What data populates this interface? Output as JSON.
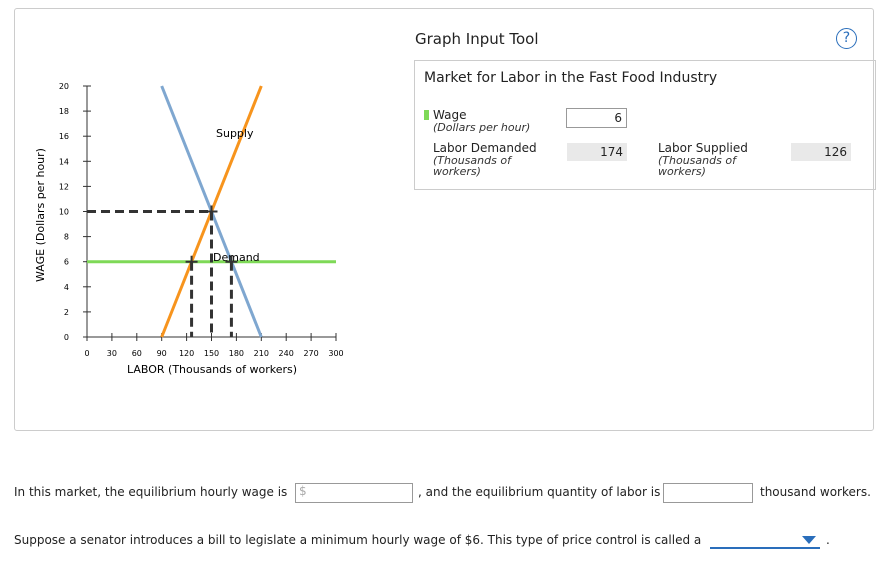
{
  "chart_data": {
    "type": "line",
    "x_label": "LABOR (Thousands of workers)",
    "y_label": "WAGE (Dollars per hour)",
    "xlim": [
      0,
      300
    ],
    "ylim": [
      0,
      20
    ],
    "xticks": [
      0,
      30,
      60,
      90,
      120,
      150,
      180,
      210,
      240,
      270,
      300
    ],
    "yticks": [
      0,
      2,
      4,
      6,
      8,
      10,
      12,
      14,
      16,
      18,
      20
    ],
    "series": [
      {
        "name": "Supply",
        "color": "#f7941d",
        "x": [
          90,
          210
        ],
        "values": [
          0,
          20
        ]
      },
      {
        "name": "Demand",
        "color": "#7fa7d0",
        "x": [
          90,
          210
        ],
        "values": [
          20,
          0
        ]
      }
    ],
    "wage_color": "#7ed957",
    "equilibrium": {
      "x": 150,
      "y": 10
    }
  },
  "tool": {
    "title": "Graph Input Tool",
    "help": "?",
    "market": "Market for Labor in the Fast Food Industry",
    "wage": {
      "label": "Wage",
      "unit": "(Dollars per hour)",
      "value": 6
    },
    "demanded": {
      "label": "Labor Demanded",
      "unit": "(Thousands of workers)",
      "value": 174
    },
    "supplied": {
      "label": "Labor Supplied",
      "unit": "(Thousands of workers)",
      "value": 126
    }
  },
  "question": {
    "q1_a": "In this market, the equilibrium hourly wage is",
    "q1_dollar": "$",
    "q1_b": ", and the equilibrium quantity of labor is",
    "q1_c": "thousand workers.",
    "q2": "Suppose a senator introduces a bill to legislate a minimum hourly wage of $6. This type of price control is called a",
    "q2_end": "."
  }
}
